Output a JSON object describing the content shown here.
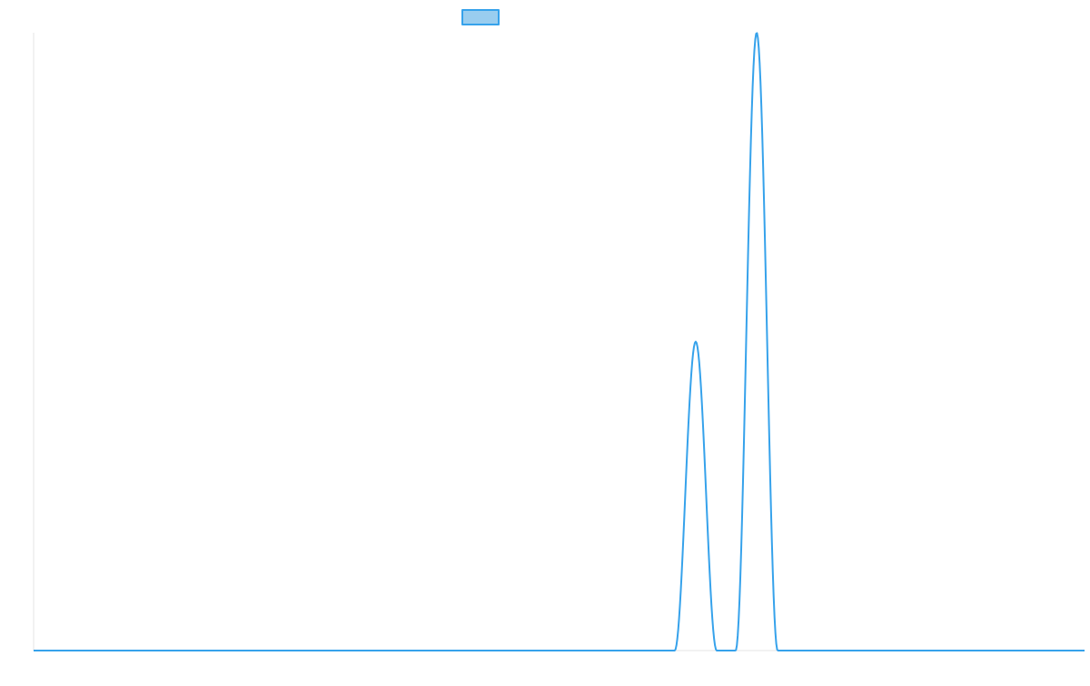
{
  "chart_data": {
    "type": "line",
    "title": "",
    "xlabel": "",
    "ylabel": "",
    "legend": {
      "position": "top",
      "series_name": ""
    },
    "grid": false,
    "x": [
      0,
      5,
      10,
      15,
      20,
      25,
      30,
      31,
      32,
      33,
      34,
      35,
      36,
      37,
      38,
      39,
      40,
      45,
      50
    ],
    "xlim": [
      0,
      50
    ],
    "ylim": [
      0,
      1
    ],
    "series": [
      {
        "color": "#36a2eb",
        "fill": "#99cdef",
        "values": [
          0,
          0,
          0,
          0,
          0,
          0,
          0,
          0,
          0.5,
          0,
          0,
          1,
          0,
          0,
          0,
          0,
          0,
          0,
          0
        ]
      }
    ],
    "peaks": [
      {
        "x": 31.5,
        "y": 0.5,
        "x_start": 30.5,
        "x_end": 32.5
      },
      {
        "x": 34.4,
        "y": 1.0,
        "x_start": 33.4,
        "x_end": 35.4
      }
    ]
  }
}
